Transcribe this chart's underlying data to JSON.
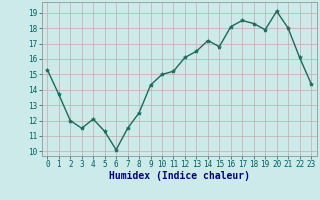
{
  "x": [
    0,
    1,
    2,
    3,
    4,
    5,
    6,
    7,
    8,
    9,
    10,
    11,
    12,
    13,
    14,
    15,
    16,
    17,
    18,
    19,
    20,
    21,
    22,
    23
  ],
  "y": [
    15.3,
    13.7,
    12.0,
    11.5,
    12.1,
    11.3,
    10.1,
    11.5,
    12.5,
    14.3,
    15.0,
    15.2,
    16.1,
    16.5,
    17.2,
    16.8,
    18.1,
    18.5,
    18.3,
    17.9,
    19.1,
    18.0,
    16.1,
    14.4
  ],
  "line_color": "#1a6b5a",
  "marker": "*",
  "marker_size": 3,
  "bg_color": "#cceaea",
  "grid_color": "#c8a8a8",
  "xlabel": "Humidex (Indice chaleur)",
  "xlim": [
    -0.5,
    23.5
  ],
  "ylim": [
    9.7,
    19.7
  ],
  "yticks": [
    10,
    11,
    12,
    13,
    14,
    15,
    16,
    17,
    18,
    19
  ],
  "xticks": [
    0,
    1,
    2,
    3,
    4,
    5,
    6,
    7,
    8,
    9,
    10,
    11,
    12,
    13,
    14,
    15,
    16,
    17,
    18,
    19,
    20,
    21,
    22,
    23
  ],
  "tick_label_color": "#006060",
  "xlabel_color": "#000080",
  "xlabel_fontsize": 7,
  "tick_fontsize": 5.5,
  "linewidth": 1.0
}
